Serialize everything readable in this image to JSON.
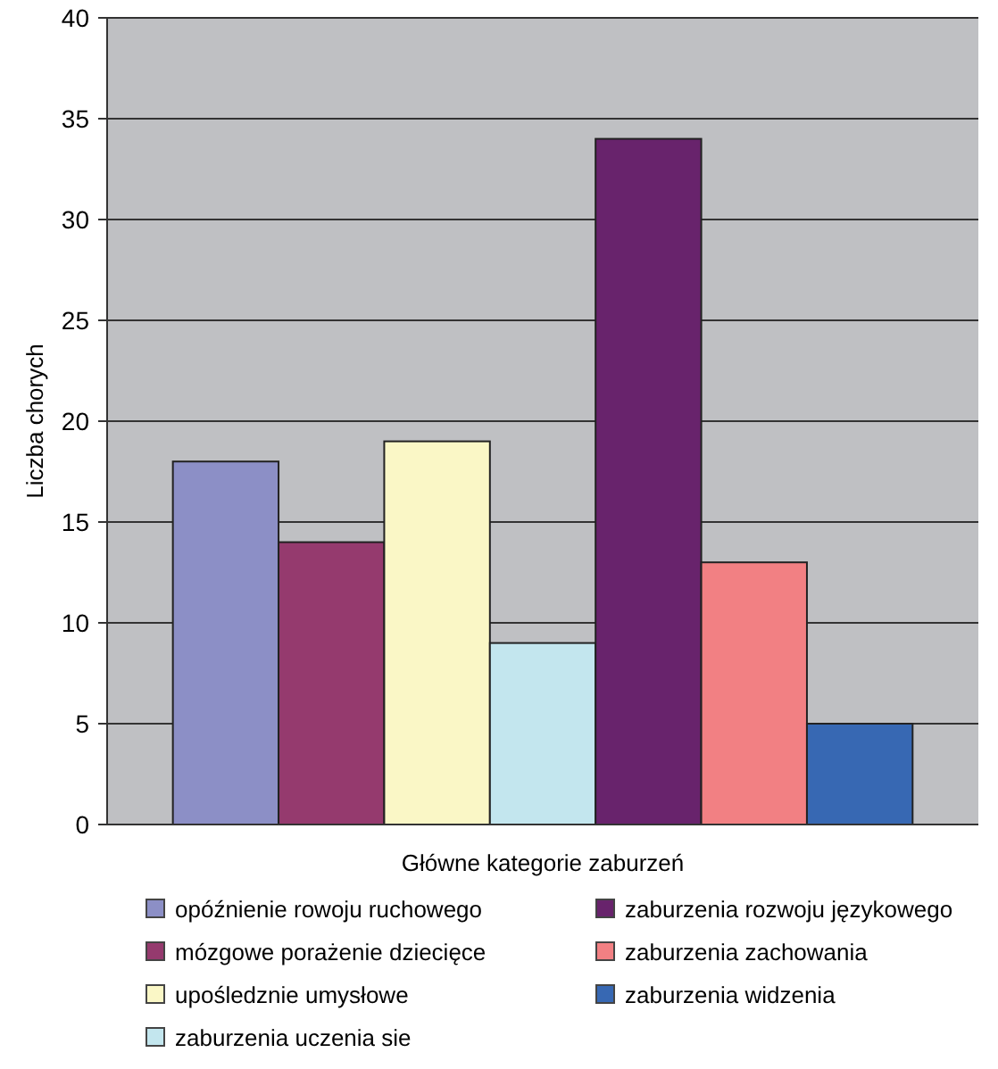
{
  "chart_data": {
    "type": "bar",
    "xlabel": "Główne kategorie zaburzeń",
    "ylabel": "Liczba chorych",
    "categories": [
      null
    ],
    "ylim": [
      0,
      40
    ],
    "yticks": [
      0,
      5,
      10,
      15,
      20,
      25,
      30,
      35,
      40
    ],
    "grid": "y",
    "legend": "bottom",
    "series": [
      {
        "name": "opóźnienie rowoju ruchowego",
        "color": "#8c8fc6",
        "values": [
          18
        ]
      },
      {
        "name": "mózgowe porażenie dziecięce",
        "color": "#953a6e",
        "values": [
          14
        ]
      },
      {
        "name": "upośledznie umysłowe",
        "color": "#faf7c6",
        "values": [
          19
        ]
      },
      {
        "name": "zaburzenia uczenia sie",
        "color": "#c3e6ee",
        "values": [
          9
        ]
      },
      {
        "name": "zaburzenia rozwoju językowego",
        "color": "#68236c",
        "values": [
          34
        ]
      },
      {
        "name": "zaburzenia zachowania",
        "color": "#f28083",
        "values": [
          13
        ]
      },
      {
        "name": "zaburzenia widzenia",
        "color": "#3768b3",
        "values": [
          5
        ]
      }
    ]
  }
}
